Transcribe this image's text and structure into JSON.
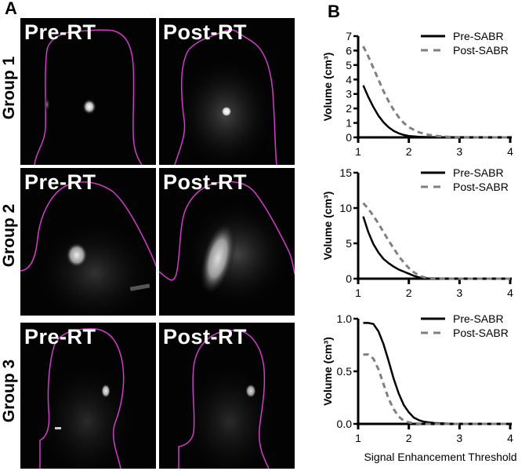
{
  "panel_a": {
    "letter": "A",
    "rows": [
      {
        "group": "Group 1",
        "pre_label": "Pre-RT",
        "post_label": "Post-RT"
      },
      {
        "group": "Group 2",
        "pre_label": "Pre-RT",
        "post_label": "Post-RT"
      },
      {
        "group": "Group 3",
        "pre_label": "Pre-RT",
        "post_label": "Post-RT"
      }
    ],
    "contour_color": "#d23cc8"
  },
  "panel_b": {
    "letter": "B"
  },
  "chart_data": [
    {
      "type": "line",
      "title": "Group 1",
      "xlabel": "",
      "ylabel": "Volume (cm³)",
      "xlim": [
        1,
        4
      ],
      "ylim": [
        0,
        7
      ],
      "xticks": [
        1,
        2,
        3,
        4
      ],
      "yticks": [
        0,
        1,
        2,
        3,
        4,
        5,
        6,
        7
      ],
      "legend_position": "upper right",
      "grid": false,
      "x": [
        1.1,
        1.2,
        1.3,
        1.4,
        1.5,
        1.6,
        1.7,
        1.8,
        1.9,
        2.0,
        2.2,
        2.4,
        2.6,
        2.8,
        3.0,
        3.5,
        4.0
      ],
      "series": [
        {
          "name": "Pre-SABR",
          "style": "solid",
          "color": "#000000",
          "values": [
            3.6,
            2.8,
            2.1,
            1.5,
            1.05,
            0.7,
            0.45,
            0.28,
            0.17,
            0.1,
            0.04,
            0.02,
            0.01,
            0.0,
            0.0,
            0.0,
            0.0
          ]
        },
        {
          "name": "Post-SABR",
          "style": "dashed",
          "color": "#808080",
          "values": [
            6.3,
            5.6,
            4.8,
            4.0,
            3.2,
            2.5,
            1.9,
            1.4,
            1.0,
            0.7,
            0.35,
            0.17,
            0.08,
            0.03,
            0.01,
            0.0,
            0.0
          ]
        }
      ]
    },
    {
      "type": "line",
      "title": "Group 2",
      "xlabel": "",
      "ylabel": "Volume (cm³)",
      "xlim": [
        1,
        4
      ],
      "ylim": [
        0,
        15
      ],
      "xticks": [
        1,
        2,
        3,
        4
      ],
      "yticks": [
        0,
        5,
        10,
        15
      ],
      "legend_position": "upper right",
      "grid": false,
      "x": [
        1.1,
        1.2,
        1.3,
        1.4,
        1.5,
        1.6,
        1.7,
        1.8,
        1.9,
        2.0,
        2.1,
        2.2,
        2.3,
        2.4,
        2.6,
        3.0,
        4.0
      ],
      "series": [
        {
          "name": "Pre-SABR",
          "style": "solid",
          "color": "#000000",
          "values": [
            8.8,
            6.6,
            4.9,
            3.7,
            2.8,
            2.2,
            1.7,
            1.3,
            1.0,
            0.7,
            0.4,
            0.2,
            0.08,
            0.03,
            0.0,
            0.0,
            0.0
          ]
        },
        {
          "name": "Post-SABR",
          "style": "dashed",
          "color": "#808080",
          "values": [
            10.7,
            9.9,
            8.9,
            7.8,
            6.6,
            5.4,
            4.3,
            3.2,
            2.3,
            1.5,
            0.9,
            0.45,
            0.2,
            0.08,
            0.02,
            0.0,
            0.0
          ]
        }
      ]
    },
    {
      "type": "line",
      "title": "Group 3",
      "xlabel": "Signal Enhancement Threshold",
      "ylabel": "Volume (cm³)",
      "xlim": [
        1,
        4
      ],
      "ylim": [
        0,
        1.0
      ],
      "xticks": [
        1,
        2,
        3,
        4
      ],
      "yticks": [
        0.0,
        0.5,
        1.0
      ],
      "legend_position": "upper right",
      "grid": false,
      "x": [
        1.1,
        1.2,
        1.3,
        1.4,
        1.5,
        1.6,
        1.7,
        1.8,
        1.9,
        2.0,
        2.1,
        2.2,
        2.3,
        2.5,
        2.8,
        3.0,
        4.0
      ],
      "series": [
        {
          "name": "Pre-SABR",
          "style": "solid",
          "color": "#000000",
          "values": [
            0.96,
            0.96,
            0.95,
            0.88,
            0.76,
            0.6,
            0.43,
            0.29,
            0.18,
            0.11,
            0.06,
            0.035,
            0.02,
            0.008,
            0.003,
            0.002,
            0.0
          ]
        },
        {
          "name": "Post-SABR",
          "style": "dashed",
          "color": "#808080",
          "values": [
            0.66,
            0.66,
            0.62,
            0.52,
            0.38,
            0.24,
            0.14,
            0.07,
            0.03,
            0.015,
            0.006,
            0.003,
            0.0,
            0.0,
            0.0,
            0.0,
            0.0
          ]
        }
      ]
    }
  ]
}
